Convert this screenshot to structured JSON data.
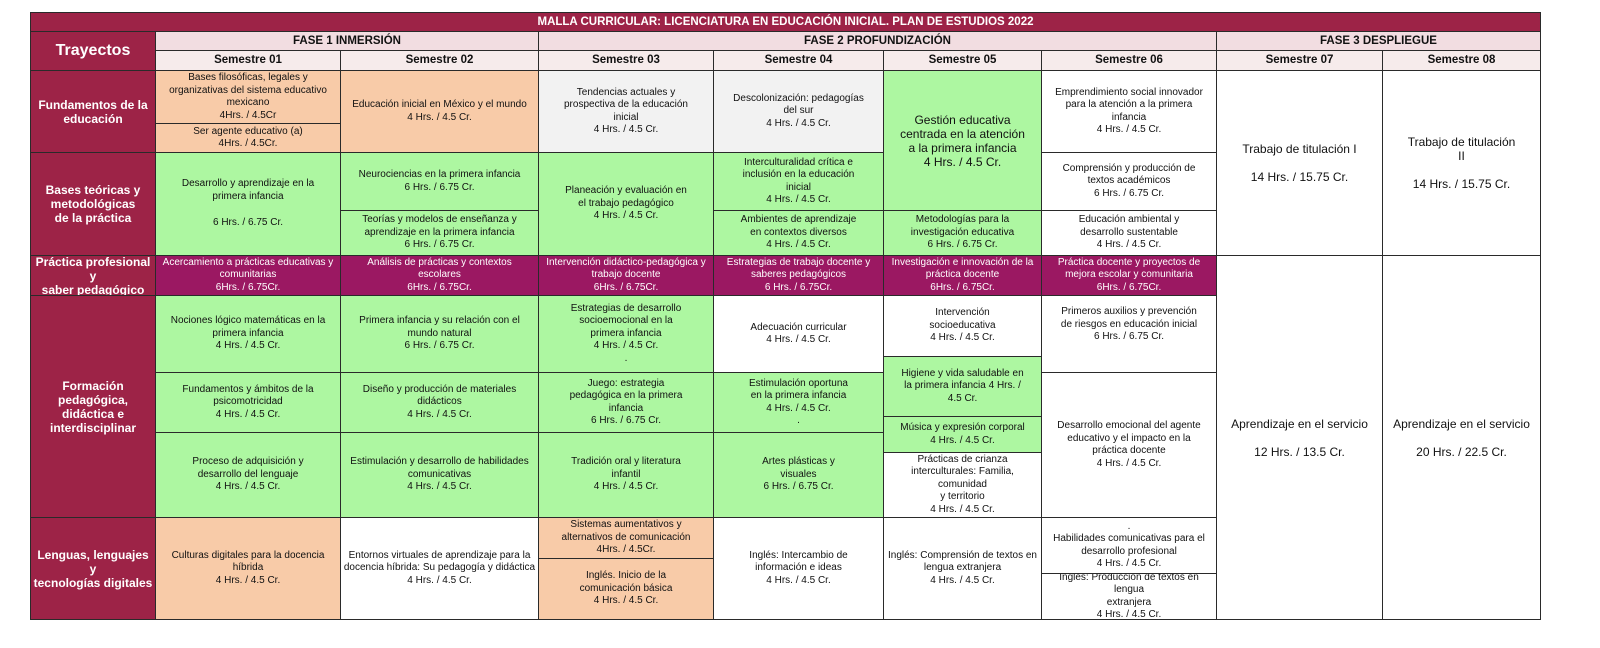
{
  "title": "MALLA CURRICULAR: LICENCIATURA EN EDUCACIÓN INICIAL. PLAN  DE ESTUDIOS 2022",
  "corner": "Trayectos",
  "phases": [
    "FASE 1  INMERSIÓN",
    "FASE 2 PROFUNDIZACIÓN",
    "FASE 3 DESPLIEGUE"
  ],
  "semesters": [
    "Semestre 01",
    "Semestre 02",
    "Semestre 03",
    "Semestre 04",
    "Semestre 05",
    "Semestre 06",
    "Semestre 07",
    "Semestre 08"
  ],
  "trayectos": [
    {
      "lines": [
        "Fundamentos de la",
        "educación"
      ]
    },
    {
      "lines": [
        "Bases teóricas y",
        "metodológicas",
        "de la práctica"
      ]
    },
    {
      "lines": [
        "Práctica profesional y",
        "saber pedagógico"
      ]
    },
    {
      "lines": [
        "Formación",
        "pedagógica,",
        "didáctica e",
        "interdisciplinar"
      ]
    },
    {
      "lines": [
        "Lenguas, lenguajes y",
        "tecnologías digitales"
      ]
    }
  ],
  "cells": [
    {
      "lines": [
        "Bases filosóficas, legales y",
        "organizativas del sistema educativo",
        "mexicano",
        "4Hrs. / 4.5Cr"
      ]
    },
    {
      "lines": [
        "Ser agente educativo (a)",
        "4Hrs. / 4.5Cr."
      ]
    },
    {
      "lines": [
        "Educación inicial en México y el mundo",
        "4 Hrs. / 4.5 Cr."
      ]
    },
    {
      "lines": [
        "Tendencias actuales y",
        "prospectiva de la educación",
        "inicial",
        "4 Hrs. / 4.5 Cr."
      ]
    },
    {
      "lines": [
        "Descolonización: pedagogías",
        "del sur",
        "4 Hrs. / 4.5 Cr."
      ]
    },
    {
      "lines": [
        "Gestión educativa",
        "centrada en la atención",
        "a la primera infancia",
        "4 Hrs. / 4.5 Cr."
      ]
    },
    {
      "lines": [
        "Emprendimiento social innovador",
        "para la atención a la primera",
        "infancia",
        "4 Hrs. / 4.5 Cr."
      ]
    },
    {
      "lines": [
        "Trabajo de titulación I",
        "14 Hrs.  /  15.75 Cr."
      ]
    },
    {
      "lines": [
        "Trabajo de titulación",
        "II",
        "14 Hrs. / 15.75 Cr."
      ]
    },
    {
      "lines": [
        "Desarrollo y aprendizaje en la",
        "primera infancia",
        "6 Hrs. / 6.75 Cr."
      ]
    },
    {
      "lines": [
        "Neurociencias en la primera infancia",
        "6 Hrs. / 6.75 Cr."
      ]
    },
    {
      "lines": [
        "Teorías y modelos de enseñanza y",
        "aprendizaje en la primera infancia",
        "6 Hrs. / 6.75 Cr."
      ]
    },
    {
      "lines": [
        "Planeación y evaluación en",
        "el trabajo pedagógico",
        "4 Hrs. / 4.5 Cr."
      ]
    },
    {
      "lines": [
        "Interculturalidad crítica e",
        "inclusión en la educación",
        "inicial",
        "4 Hrs. / 4.5 Cr."
      ]
    },
    {
      "lines": [
        "Ambientes de aprendizaje",
        "en contextos diversos",
        "4 Hrs. / 4.5 Cr."
      ]
    },
    {
      "lines": [
        "Metodologías para la",
        "investigación educativa",
        "6 Hrs. / 6.75 Cr."
      ]
    },
    {
      "lines": [
        "Comprensión y producción de",
        "textos académicos",
        "6 Hrs. / 6.75 Cr."
      ]
    },
    {
      "lines": [
        "Educación ambiental y",
        "desarrollo sustentable",
        "4 Hrs. / 4.5 Cr."
      ]
    },
    {
      "lines": [
        "Acercamiento a prácticas educativas y",
        "comunitarias",
        "6Hrs. / 6.75Cr."
      ]
    },
    {
      "lines": [
        "Análisis de prácticas y contextos",
        "escolares",
        "6Hrs. /  6.75Cr."
      ]
    },
    {
      "lines": [
        "Intervención didáctico-pedagógica y",
        "trabajo docente",
        "6Hrs. / 6.75Cr."
      ]
    },
    {
      "lines": [
        "Estrategias de trabajo docente y",
        "saberes pedagógicos",
        "6 Hrs. / 6.75Cr."
      ]
    },
    {
      "lines": [
        "Investigación e innovación de la",
        "práctica docente",
        "6Hrs. / 6.75Cr."
      ]
    },
    {
      "lines": [
        "Práctica docente y proyectos de",
        "mejora escolar y comunitaria",
        "6Hrs. / 6.75Cr."
      ]
    },
    {
      "lines": [
        "Aprendizaje en el servicio",
        "12 Hrs. / 13.5 Cr."
      ]
    },
    {
      "lines": [
        "Aprendizaje en el servicio",
        "20 Hrs. / 22.5 Cr."
      ]
    },
    {
      "lines": [
        "Nociones lógico matemáticas en la",
        "primera infancia",
        "4 Hrs. / 4.5 Cr."
      ]
    },
    {
      "lines": [
        "Fundamentos y ámbitos de la",
        "psicomotricidad",
        "4 Hrs. / 4.5 Cr."
      ]
    },
    {
      "lines": [
        "Proceso de adquisición y",
        "desarrollo del lenguaje",
        "4 Hrs. / 4.5 Cr."
      ]
    },
    {
      "lines": [
        "Primera infancia y su relación con el",
        "mundo natural",
        "6 Hrs. / 6.75 Cr."
      ]
    },
    {
      "lines": [
        "Diseño y producción de materiales",
        "didácticos",
        "4 Hrs. / 4.5 Cr."
      ]
    },
    {
      "lines": [
        "Estimulación y desarrollo de habilidades",
        "comunicativas",
        "4 Hrs. / 4.5 Cr."
      ]
    },
    {
      "lines": [
        "Estrategias de desarrollo",
        "socioemocional en la",
        "primera infancia",
        "4 Hrs. / 4.5 Cr.",
        "."
      ]
    },
    {
      "lines": [
        "Juego: estrategia",
        "pedagógica en la primera",
        "infancia",
        "6 Hrs. / 6.75 Cr."
      ]
    },
    {
      "lines": [
        "Tradición oral y literatura",
        "infantil",
        "4 Hrs. / 4.5 Cr."
      ]
    },
    {
      "lines": [
        "Adecuación curricular",
        "4 Hrs. / 4.5 Cr."
      ]
    },
    {
      "lines": [
        "Estimulación oportuna",
        "en la primera infancia",
        "4 Hrs. / 4.5 Cr.",
        "."
      ]
    },
    {
      "lines": [
        "Artes plásticas y",
        "visuales",
        "6 Hrs. / 6.75 Cr."
      ]
    },
    {
      "lines": [
        "Intervención",
        "socioeducativa",
        "4 Hrs. / 4.5 Cr."
      ]
    },
    {
      "lines": [
        "Higiene y vida saludable en",
        "la primera infancia 4 Hrs. /",
        "4.5 Cr."
      ]
    },
    {
      "lines": [
        "Música y expresión corporal",
        "4 Hrs. / 4.5 Cr."
      ]
    },
    {
      "lines": [
        "Prácticas de crianza",
        "interculturales: Familia, comunidad",
        "y territorio",
        "4 Hrs. / 4.5 Cr."
      ]
    },
    {
      "lines": [
        "Primeros auxilios y prevención",
        "de riesgos en educación inicial",
        "6 Hrs. / 6.75 Cr."
      ]
    },
    {
      "lines": [
        "Desarrollo emocional del agente",
        "educativo y el impacto en la",
        "práctica docente",
        "4 Hrs. / 4.5 Cr."
      ]
    },
    {
      "lines": [
        "Culturas digitales para la docencia",
        "híbrida",
        "4 Hrs. / 4.5 Cr."
      ]
    },
    {
      "lines": [
        "Entornos virtuales de aprendizaje para la",
        "docencia híbrida: Su pedagogía y didáctica",
        "4 Hrs. / 4.5 Cr."
      ]
    },
    {
      "lines": [
        "Sistemas aumentativos y",
        "alternativos de comunicación",
        "4Hrs. / 4.5Cr."
      ]
    },
    {
      "lines": [
        "Inglés. Inicio de la",
        "comunicación básica",
        "4 Hrs. / 4.5 Cr."
      ]
    },
    {
      "lines": [
        "Inglés: Intercambio de",
        "información e ideas",
        "4 Hrs. / 4.5 Cr."
      ]
    },
    {
      "lines": [
        "Inglés: Comprensión de textos en",
        "lengua extranjera",
        "4 Hrs. / 4.5 Cr."
      ]
    },
    {
      "lines": [
        ".",
        "Habilidades comunicativas para el",
        "desarrollo profesional",
        "4 Hrs. / 4.5 Cr."
      ]
    },
    {
      "lines": [
        "Inglés: Producción de textos en lengua",
        "extranjera",
        "4 Hrs. / 4.5 Cr."
      ]
    }
  ]
}
